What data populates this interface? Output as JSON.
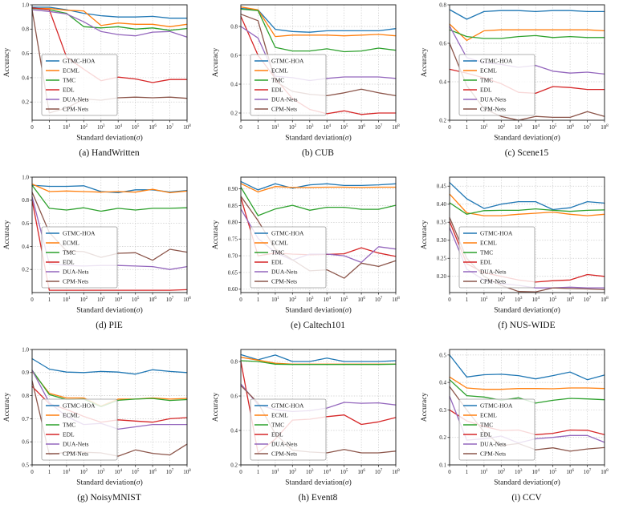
{
  "figure": {
    "x_label": "Standard deviation(σ)",
    "y_label": "Accuracy",
    "legend_position": "center-left",
    "grid": true,
    "x_categories": [
      "0",
      "1",
      "10^1",
      "10^2",
      "10^3",
      "10^4",
      "10^5",
      "10^6",
      "10^7",
      "10^8"
    ],
    "series_names": [
      "GTMC-HOA",
      "ECML",
      "TMC",
      "EDL",
      "DUA-Nets",
      "CPM-Nets"
    ],
    "series_colors": {
      "GTMC-HOA": "#1f77b4",
      "ECML": "#ff7f0e",
      "TMC": "#2ca02c",
      "EDL": "#d62728",
      "DUA-Nets": "#9467bd",
      "CPM-Nets": "#8c564b"
    }
  },
  "chart_data": [
    {
      "type": "line",
      "dataset": "HandWritten",
      "caption": "(a) HandWritten",
      "ylim": [
        0.05,
        1.0
      ],
      "yticks": [
        0.2,
        0.4,
        0.6,
        0.8,
        1.0
      ],
      "ytick_labels": [
        "0.2",
        "0.4",
        "0.6",
        "0.8",
        "1.0"
      ],
      "series": [
        {
          "name": "GTMC-HOA",
          "values": [
            0.98,
            0.98,
            0.96,
            0.93,
            0.91,
            0.9,
            0.9,
            0.905,
            0.89,
            0.89
          ]
        },
        {
          "name": "ECML",
          "values": [
            0.97,
            0.97,
            0.955,
            0.95,
            0.83,
            0.85,
            0.84,
            0.84,
            0.82,
            0.84
          ]
        },
        {
          "name": "TMC",
          "values": [
            0.97,
            0.96,
            0.93,
            0.82,
            0.81,
            0.82,
            0.8,
            0.81,
            0.79,
            0.805
          ]
        },
        {
          "name": "EDL",
          "values": [
            0.975,
            0.96,
            0.57,
            0.47,
            0.375,
            0.405,
            0.39,
            0.36,
            0.385,
            0.385
          ]
        },
        {
          "name": "DUA-Nets",
          "values": [
            0.96,
            0.945,
            0.925,
            0.86,
            0.78,
            0.755,
            0.745,
            0.775,
            0.78,
            0.735
          ]
        },
        {
          "name": "CPM-Nets",
          "values": [
            0.96,
            0.11,
            0.15,
            0.225,
            0.215,
            0.235,
            0.24,
            0.235,
            0.24,
            0.23
          ]
        }
      ]
    },
    {
      "type": "line",
      "dataset": "CUB",
      "caption": "(b) CUB",
      "ylim": [
        0.15,
        0.95
      ],
      "yticks": [
        0.2,
        0.4,
        0.6,
        0.8
      ],
      "ytick_labels": [
        "0.2",
        "0.4",
        "0.6",
        "0.8"
      ],
      "series": [
        {
          "name": "GTMC-HOA",
          "values": [
            0.925,
            0.915,
            0.78,
            0.765,
            0.76,
            0.77,
            0.77,
            0.77,
            0.77,
            0.785
          ]
        },
        {
          "name": "ECML",
          "values": [
            0.935,
            0.915,
            0.73,
            0.74,
            0.74,
            0.74,
            0.735,
            0.74,
            0.745,
            0.735
          ]
        },
        {
          "name": "TMC",
          "values": [
            0.92,
            0.91,
            0.655,
            0.63,
            0.63,
            0.645,
            0.625,
            0.63,
            0.65,
            0.635
          ]
        },
        {
          "name": "EDL",
          "values": [
            0.87,
            0.6,
            0.44,
            0.3,
            0.225,
            0.195,
            0.215,
            0.19,
            0.2,
            0.2
          ]
        },
        {
          "name": "DUA-Nets",
          "values": [
            0.8,
            0.72,
            0.455,
            0.445,
            0.425,
            0.44,
            0.45,
            0.45,
            0.45,
            0.44
          ]
        },
        {
          "name": "CPM-Nets",
          "values": [
            0.885,
            0.84,
            0.42,
            0.35,
            0.33,
            0.32,
            0.34,
            0.365,
            0.34,
            0.32
          ]
        }
      ]
    },
    {
      "type": "line",
      "dataset": "Scene15",
      "caption": "(c) Scene15",
      "ylim": [
        0.2,
        0.8
      ],
      "yticks": [
        0.2,
        0.4,
        0.6,
        0.8
      ],
      "ytick_labels": [
        "0.2",
        "0.4",
        "0.6",
        "0.8"
      ],
      "series": [
        {
          "name": "GTMC-HOA",
          "values": [
            0.775,
            0.725,
            0.765,
            0.77,
            0.77,
            0.765,
            0.77,
            0.77,
            0.765,
            0.765
          ]
        },
        {
          "name": "ECML",
          "values": [
            0.7,
            0.615,
            0.665,
            0.67,
            0.67,
            0.67,
            0.67,
            0.67,
            0.67,
            0.665
          ]
        },
        {
          "name": "TMC",
          "values": [
            0.67,
            0.635,
            0.625,
            0.625,
            0.635,
            0.64,
            0.63,
            0.635,
            0.63,
            0.63
          ]
        },
        {
          "name": "EDL",
          "values": [
            0.465,
            0.445,
            0.42,
            0.39,
            0.345,
            0.34,
            0.375,
            0.37,
            0.36,
            0.36
          ]
        },
        {
          "name": "DUA-Nets",
          "values": [
            0.69,
            0.525,
            0.5,
            0.49,
            0.475,
            0.485,
            0.455,
            0.445,
            0.45,
            0.44
          ]
        },
        {
          "name": "CPM-Nets",
          "values": [
            0.6,
            0.38,
            0.26,
            0.22,
            0.2,
            0.22,
            0.215,
            0.215,
            0.245,
            0.22
          ]
        }
      ]
    },
    {
      "type": "line",
      "dataset": "PIE",
      "caption": "(d) PIE",
      "ylim": [
        0.0,
        1.0
      ],
      "yticks": [
        0.2,
        0.4,
        0.6,
        0.8,
        1.0
      ],
      "ytick_labels": [
        "0.2",
        "0.4",
        "0.6",
        "0.8",
        "1.0"
      ],
      "series": [
        {
          "name": "GTMC-HOA",
          "values": [
            0.93,
            0.92,
            0.92,
            0.925,
            0.875,
            0.865,
            0.89,
            0.89,
            0.87,
            0.885
          ]
        },
        {
          "name": "ECML",
          "values": [
            0.94,
            0.875,
            0.88,
            0.875,
            0.87,
            0.875,
            0.87,
            0.895,
            0.865,
            0.88
          ]
        },
        {
          "name": "TMC",
          "values": [
            0.93,
            0.73,
            0.715,
            0.735,
            0.705,
            0.73,
            0.715,
            0.73,
            0.73,
            0.735
          ]
        },
        {
          "name": "EDL",
          "values": [
            0.8,
            0.02,
            0.02,
            0.02,
            0.02,
            0.02,
            0.02,
            0.02,
            0.02,
            0.025
          ]
        },
        {
          "name": "DUA-Nets",
          "values": [
            0.83,
            0.25,
            0.235,
            0.23,
            0.235,
            0.235,
            0.23,
            0.225,
            0.2,
            0.225
          ]
        },
        {
          "name": "CPM-Nets",
          "values": [
            0.87,
            0.52,
            0.36,
            0.355,
            0.305,
            0.34,
            0.345,
            0.28,
            0.375,
            0.35
          ]
        }
      ]
    },
    {
      "type": "line",
      "dataset": "Caltech101",
      "caption": "(e) Caltech101",
      "ylim": [
        0.59,
        0.935
      ],
      "yticks": [
        0.6,
        0.65,
        0.7,
        0.75,
        0.8,
        0.85,
        0.9
      ],
      "ytick_labels": [
        "0.60",
        "0.65",
        "0.70",
        "0.75",
        "0.80",
        "0.85",
        "0.90"
      ],
      "series": [
        {
          "name": "GTMC-HOA",
          "values": [
            0.922,
            0.897,
            0.915,
            0.902,
            0.912,
            0.915,
            0.91,
            0.91,
            0.912,
            0.915
          ]
        },
        {
          "name": "ECML",
          "values": [
            0.916,
            0.891,
            0.907,
            0.904,
            0.904,
            0.905,
            0.905,
            0.904,
            0.905,
            0.905
          ]
        },
        {
          "name": "TMC",
          "values": [
            0.905,
            0.82,
            0.84,
            0.851,
            0.836,
            0.845,
            0.845,
            0.839,
            0.839,
            0.851
          ]
        },
        {
          "name": "EDL",
          "values": [
            0.874,
            0.7,
            0.708,
            0.705,
            0.703,
            0.704,
            0.706,
            0.724,
            0.708,
            0.698
          ]
        },
        {
          "name": "DUA-Nets",
          "values": [
            0.84,
            0.752,
            0.71,
            0.687,
            0.705,
            0.705,
            0.7,
            0.68,
            0.727,
            0.72
          ]
        },
        {
          "name": "CPM-Nets",
          "values": [
            0.878,
            0.805,
            0.72,
            0.688,
            0.655,
            0.658,
            0.633,
            0.678,
            0.668,
            0.685
          ]
        }
      ]
    },
    {
      "type": "line",
      "dataset": "NUS-WIDE",
      "caption": "(f) NUS-WIDE",
      "ylim": [
        0.155,
        0.475
      ],
      "yticks": [
        0.2,
        0.25,
        0.3,
        0.35,
        0.4,
        0.45
      ],
      "ytick_labels": [
        "0.20",
        "0.25",
        "0.30",
        "0.35",
        "0.40",
        "0.45"
      ],
      "series": [
        {
          "name": "GTMC-HOA",
          "values": [
            0.46,
            0.415,
            0.388,
            0.4,
            0.407,
            0.407,
            0.385,
            0.39,
            0.407,
            0.403
          ]
        },
        {
          "name": "ECML",
          "values": [
            0.428,
            0.376,
            0.368,
            0.368,
            0.372,
            0.375,
            0.378,
            0.372,
            0.368,
            0.372
          ]
        },
        {
          "name": "TMC",
          "values": [
            0.404,
            0.372,
            0.382,
            0.383,
            0.383,
            0.387,
            0.383,
            0.38,
            0.383,
            0.384
          ]
        },
        {
          "name": "EDL",
          "values": [
            0.352,
            0.235,
            0.21,
            0.2,
            0.19,
            0.184,
            0.188,
            0.19,
            0.205,
            0.2
          ]
        },
        {
          "name": "DUA-Nets",
          "values": [
            0.335,
            0.22,
            0.19,
            0.18,
            0.175,
            0.168,
            0.168,
            0.17,
            0.168,
            0.168
          ]
        },
        {
          "name": "CPM-Nets",
          "values": [
            0.363,
            0.25,
            0.2,
            0.175,
            0.158,
            0.157,
            0.168,
            0.166,
            0.165,
            0.163
          ]
        }
      ]
    },
    {
      "type": "line",
      "dataset": "NoisyMNIST",
      "caption": "(g) NoisyMNIST",
      "ylim": [
        0.5,
        1.0
      ],
      "yticks": [
        0.5,
        0.6,
        0.7,
        0.8,
        0.9,
        1.0
      ],
      "ytick_labels": [
        "0.5",
        "0.6",
        "0.7",
        "0.8",
        "0.9",
        "1.0"
      ],
      "series": [
        {
          "name": "GTMC-HOA",
          "values": [
            0.96,
            0.915,
            0.902,
            0.9,
            0.905,
            0.902,
            0.893,
            0.912,
            0.905,
            0.9
          ]
        },
        {
          "name": "ECML",
          "values": [
            0.905,
            0.81,
            0.79,
            0.79,
            0.755,
            0.785,
            0.785,
            0.79,
            0.785,
            0.788
          ]
        },
        {
          "name": "TMC",
          "values": [
            0.91,
            0.805,
            0.783,
            0.785,
            0.752,
            0.78,
            0.785,
            0.788,
            0.779,
            0.783
          ]
        },
        {
          "name": "EDL",
          "values": [
            0.84,
            0.765,
            0.74,
            0.71,
            0.685,
            0.695,
            0.69,
            0.685,
            0.7,
            0.705
          ]
        },
        {
          "name": "DUA-Nets",
          "values": [
            0.91,
            0.77,
            0.71,
            0.675,
            0.68,
            0.655,
            0.665,
            0.675,
            0.675,
            0.675
          ]
        },
        {
          "name": "CPM-Nets",
          "values": [
            0.865,
            0.545,
            0.555,
            0.555,
            0.552,
            0.538,
            0.565,
            0.55,
            0.543,
            0.59
          ]
        }
      ]
    },
    {
      "type": "line",
      "dataset": "Event8",
      "caption": "(h) Event8",
      "ylim": [
        0.2,
        0.87
      ],
      "yticks": [
        0.2,
        0.4,
        0.6,
        0.8
      ],
      "ytick_labels": [
        "0.2",
        "0.4",
        "0.6",
        "0.8"
      ],
      "series": [
        {
          "name": "GTMC-HOA",
          "values": [
            0.84,
            0.81,
            0.838,
            0.8,
            0.8,
            0.82,
            0.8,
            0.8,
            0.8,
            0.805
          ]
        },
        {
          "name": "ECML",
          "values": [
            0.825,
            0.808,
            0.79,
            0.785,
            0.785,
            0.785,
            0.785,
            0.785,
            0.785,
            0.785
          ]
        },
        {
          "name": "TMC",
          "values": [
            0.805,
            0.8,
            0.785,
            0.783,
            0.783,
            0.783,
            0.783,
            0.783,
            0.783,
            0.785
          ]
        },
        {
          "name": "EDL",
          "values": [
            0.8,
            0.27,
            0.35,
            0.46,
            0.465,
            0.48,
            0.49,
            0.435,
            0.45,
            0.475
          ]
        },
        {
          "name": "DUA-Nets",
          "values": [
            0.67,
            0.55,
            0.52,
            0.51,
            0.515,
            0.53,
            0.563,
            0.558,
            0.56,
            0.548
          ]
        },
        {
          "name": "CPM-Nets",
          "values": [
            0.66,
            0.56,
            0.38,
            0.285,
            0.275,
            0.27,
            0.29,
            0.27,
            0.27,
            0.28
          ]
        }
      ]
    },
    {
      "type": "line",
      "dataset": "CCV",
      "caption": "(i) CCV",
      "ylim": [
        0.1,
        0.52
      ],
      "yticks": [
        0.1,
        0.2,
        0.3,
        0.4,
        0.5
      ],
      "ytick_labels": [
        "0.1",
        "0.2",
        "0.3",
        "0.4",
        "0.5"
      ],
      "series": [
        {
          "name": "GTMC-HOA",
          "values": [
            0.5,
            0.42,
            0.428,
            0.43,
            0.425,
            0.413,
            0.425,
            0.438,
            0.41,
            0.427
          ]
        },
        {
          "name": "ECML",
          "values": [
            0.42,
            0.38,
            0.375,
            0.375,
            0.378,
            0.378,
            0.377,
            0.38,
            0.38,
            0.378
          ]
        },
        {
          "name": "TMC",
          "values": [
            0.41,
            0.352,
            0.347,
            0.335,
            0.344,
            0.325,
            0.335,
            0.342,
            0.34,
            0.337
          ]
        },
        {
          "name": "EDL",
          "values": [
            0.3,
            0.26,
            0.24,
            0.225,
            0.227,
            0.21,
            0.215,
            0.227,
            0.226,
            0.21
          ]
        },
        {
          "name": "DUA-Nets",
          "values": [
            0.35,
            0.19,
            0.195,
            0.205,
            0.18,
            0.195,
            0.2,
            0.207,
            0.207,
            0.182
          ]
        },
        {
          "name": "CPM-Nets",
          "values": [
            0.385,
            0.3,
            0.22,
            0.17,
            0.178,
            0.155,
            0.162,
            0.15,
            0.158,
            0.163
          ]
        }
      ]
    }
  ]
}
